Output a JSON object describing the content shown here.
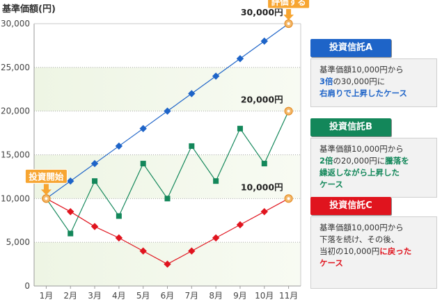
{
  "chart_data": {
    "type": "line",
    "ylabel": "基準価額(円)",
    "categories": [
      "1月",
      "2月",
      "3月",
      "4月",
      "5月",
      "6月",
      "7月",
      "8月",
      "9月",
      "10月",
      "11月"
    ],
    "ylim": [
      0,
      30000
    ],
    "yticks": [
      "0",
      "5,000",
      "10,000",
      "15,000",
      "20,000",
      "25,000",
      "30,000"
    ],
    "series": [
      {
        "name": "投資信託A",
        "color": "#1e64c8",
        "marker": "diamond",
        "values": [
          10000,
          12000,
          14000,
          16000,
          18000,
          20000,
          22000,
          24000,
          26000,
          28000,
          30000
        ]
      },
      {
        "name": "投資信託B",
        "color": "#13875a",
        "marker": "square",
        "values": [
          10000,
          6000,
          12000,
          8000,
          14000,
          10000,
          16000,
          12000,
          18000,
          14000,
          20000
        ]
      },
      {
        "name": "投資信託C",
        "color": "#e0141e",
        "marker": "diamond",
        "values": [
          10000,
          8500,
          6800,
          5500,
          4000,
          2500,
          4000,
          5500,
          7000,
          8500,
          10000
        ]
      }
    ],
    "annotations": {
      "start_label": "投資開始",
      "eval_label": "評価する",
      "end_values": [
        "30,000円",
        "20,000円",
        "10,000円"
      ]
    }
  },
  "cards": [
    {
      "title": "投資信託A",
      "header_color": "#1e64c8",
      "lines": [
        [
          {
            "t": "基準価額10,000円から"
          }
        ],
        [
          {
            "t": "3倍",
            "c": "#1e64c8",
            "b": true
          },
          {
            "t": "の30,000円に"
          }
        ],
        [
          {
            "t": "右肩りで上昇したケース",
            "c": "#1e64c8",
            "b": true
          }
        ]
      ]
    },
    {
      "title": "投資信託B",
      "header_color": "#13875a",
      "lines": [
        [
          {
            "t": "基準価額10,000円から"
          }
        ],
        [
          {
            "t": "2倍",
            "c": "#13875a",
            "b": true
          },
          {
            "t": "の20,000円に"
          },
          {
            "t": "騰落を",
            "c": "#13875a",
            "b": true
          }
        ],
        [
          {
            "t": "繰返しながら上昇した",
            "c": "#13875a",
            "b": true
          }
        ],
        [
          {
            "t": "ケース",
            "c": "#13875a",
            "b": true
          }
        ]
      ]
    },
    {
      "title": "投資信託C",
      "header_color": "#e0141e",
      "lines": [
        [
          {
            "t": "基準価額10,000円から"
          }
        ],
        [
          {
            "t": "下落を続け、その後、"
          }
        ],
        [
          {
            "t": "当初の10,000円"
          },
          {
            "t": "に戻った",
            "c": "#e0141e",
            "b": true
          }
        ],
        [
          {
            "t": "ケース",
            "c": "#e0141e",
            "b": true
          }
        ]
      ]
    }
  ]
}
